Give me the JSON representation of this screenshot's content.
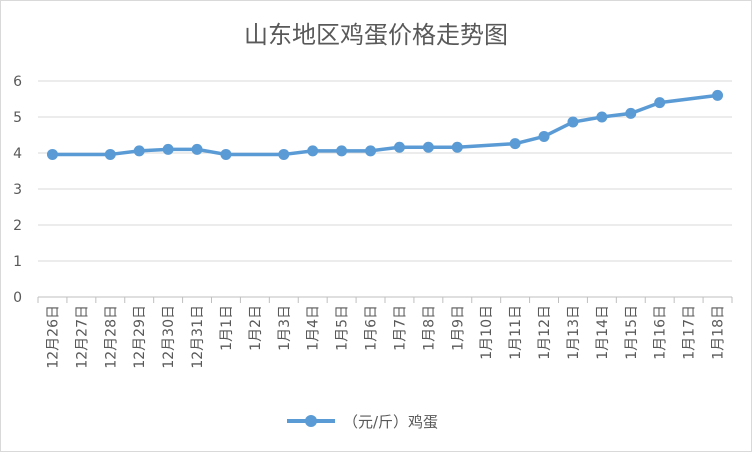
{
  "chart_data": {
    "type": "line",
    "title": "山东地区鸡蛋价格走势图",
    "xlabel": "",
    "ylabel": "",
    "ylim": [
      0,
      6
    ],
    "yticks": [
      0,
      1,
      2,
      3,
      4,
      5,
      6
    ],
    "grid": true,
    "legend_position": "bottom",
    "categories": [
      "12月26日",
      "12月27日",
      "12月28日",
      "12月29日",
      "12月30日",
      "12月31日",
      "1月1日",
      "1月2日",
      "1月3日",
      "1月4日",
      "1月5日",
      "1月6日",
      "1月7日",
      "1月8日",
      "1月9日",
      "1月10日",
      "1月11日",
      "1月12日",
      "1月13日",
      "1月14日",
      "1月15日",
      "1月16日",
      "1月17日",
      "1月18日"
    ],
    "series": [
      {
        "name": "（元/斤）鸡蛋",
        "color": "#5b9bd5",
        "values": [
          3.96,
          null,
          3.96,
          4.06,
          4.1,
          4.1,
          3.96,
          null,
          3.96,
          4.06,
          4.06,
          4.06,
          4.16,
          4.16,
          4.16,
          null,
          4.26,
          4.46,
          4.86,
          5.0,
          5.1,
          5.4,
          null,
          5.6
        ]
      }
    ]
  }
}
